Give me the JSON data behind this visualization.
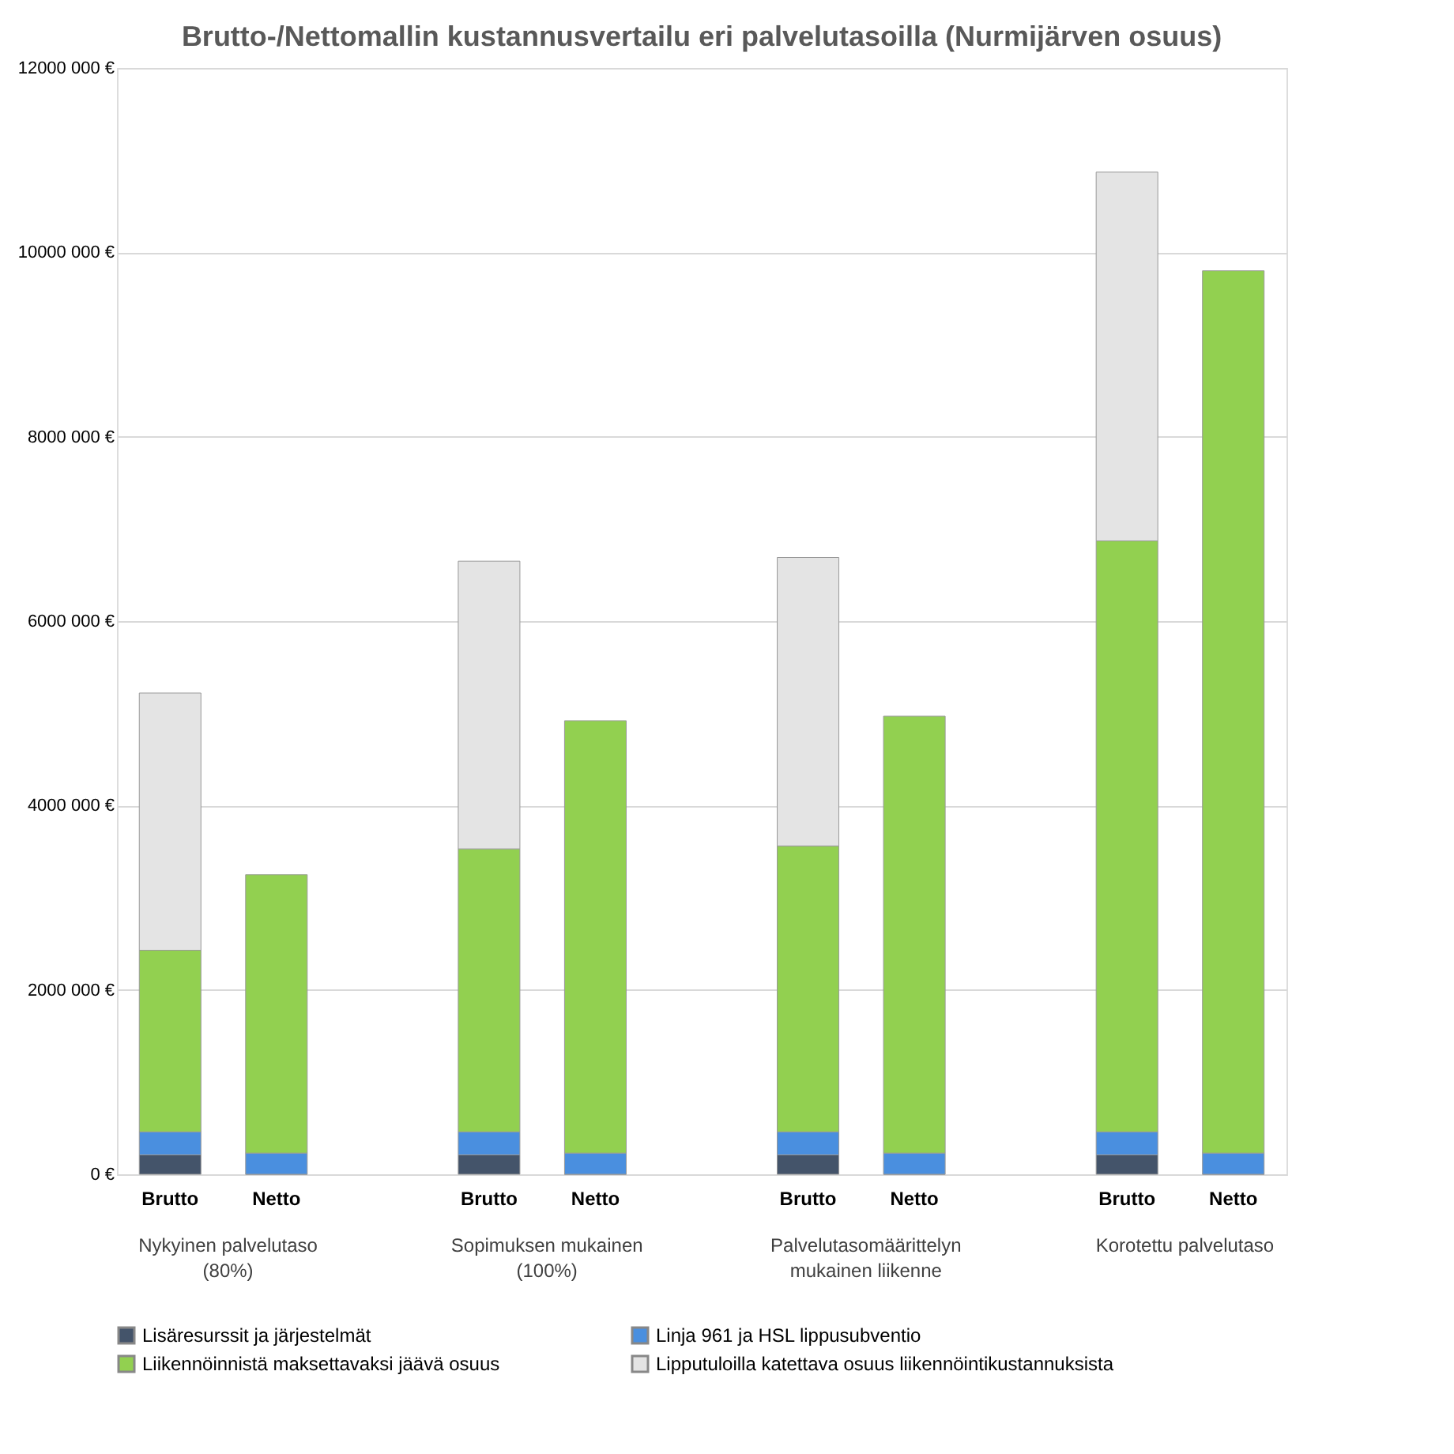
{
  "chart_data": {
    "type": "bar",
    "stacked": true,
    "title": "Brutto-/Nettomallin kustannusvertailu eri palvelutasoilla (Nurmijärven osuus)",
    "categories": [
      "Brutto",
      "Netto",
      null,
      "Brutto",
      "Netto",
      null,
      "Brutto",
      "Netto",
      null,
      "Brutto",
      "Netto"
    ],
    "series": [
      {
        "name": "Lisäresurssit ja järjestelmät",
        "color": "#44546a",
        "values": [
          210000,
          0,
          null,
          210000,
          0,
          null,
          210000,
          0,
          null,
          210000,
          0
        ]
      },
      {
        "name": "Linja 961 ja HSL lippusubventio",
        "color": "#4a8fdf",
        "values": [
          250000,
          230000,
          null,
          250000,
          230000,
          null,
          250000,
          230000,
          null,
          250000,
          230000
        ]
      },
      {
        "name": "Liikennöinnistä maksettavaksi jäävä osuus",
        "color": "#92d050",
        "values": [
          1970000,
          3020000,
          null,
          3070000,
          4690000,
          null,
          3100000,
          4740000,
          null,
          6410000,
          9570000
        ]
      },
      {
        "name": "Lipputuloilla katettava osuus liikennöintikustannuksista",
        "color": "#e4e4e4",
        "values": [
          2790000,
          null,
          null,
          3120000,
          null,
          null,
          3130000,
          null,
          null,
          4000000,
          null
        ]
      }
    ],
    "annotations": [
      "Nykyinen palvelutaso (80%)",
      "Sopimuksen mukainen (100%)",
      "Palvelutasomäärittelyn mukainen liikenne",
      "Korotettu palvelutaso"
    ],
    "ylim": [
      0,
      12000000
    ],
    "yticks": [
      {
        "value": 0,
        "label": "0 €"
      },
      {
        "value": 2000000,
        "label": "2000 000 €"
      },
      {
        "value": 4000000,
        "label": "4000 000 €"
      },
      {
        "value": 6000000,
        "label": "6000 000 €"
      },
      {
        "value": 8000000,
        "label": "8000 000 €"
      },
      {
        "value": 10000000,
        "label": "10000 000 €"
      },
      {
        "value": 12000000,
        "label": "12000 000 €"
      }
    ],
    "grid": "y",
    "legend": "bottom"
  }
}
